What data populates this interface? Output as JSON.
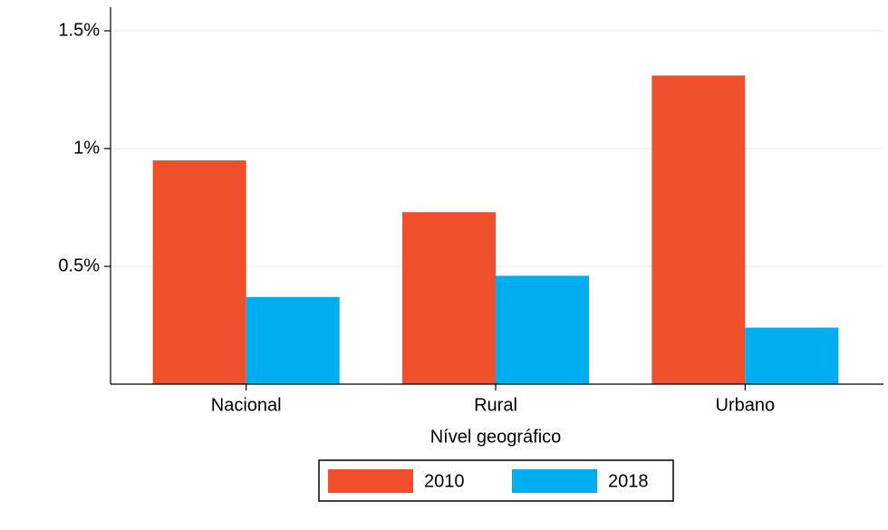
{
  "chart_data": {
    "type": "bar",
    "x_label": "Nível geográfico",
    "categories": [
      "Nacional",
      "Rural",
      "Urbano"
    ],
    "series": [
      {
        "name": "2010",
        "color": "#f04f2c",
        "values": [
          0.95,
          0.73,
          1.31
        ]
      },
      {
        "name": "2018",
        "color": "#00aeef",
        "values": [
          0.37,
          0.46,
          0.24
        ]
      }
    ],
    "ylim": [
      0,
      1.6
    ],
    "yticks": [
      {
        "value": 0.5,
        "label": "0.5%"
      },
      {
        "value": 1,
        "label": "1%"
      },
      {
        "value": 1.5,
        "label": "1.5%"
      }
    ],
    "grid": true,
    "legend": "bottom"
  }
}
